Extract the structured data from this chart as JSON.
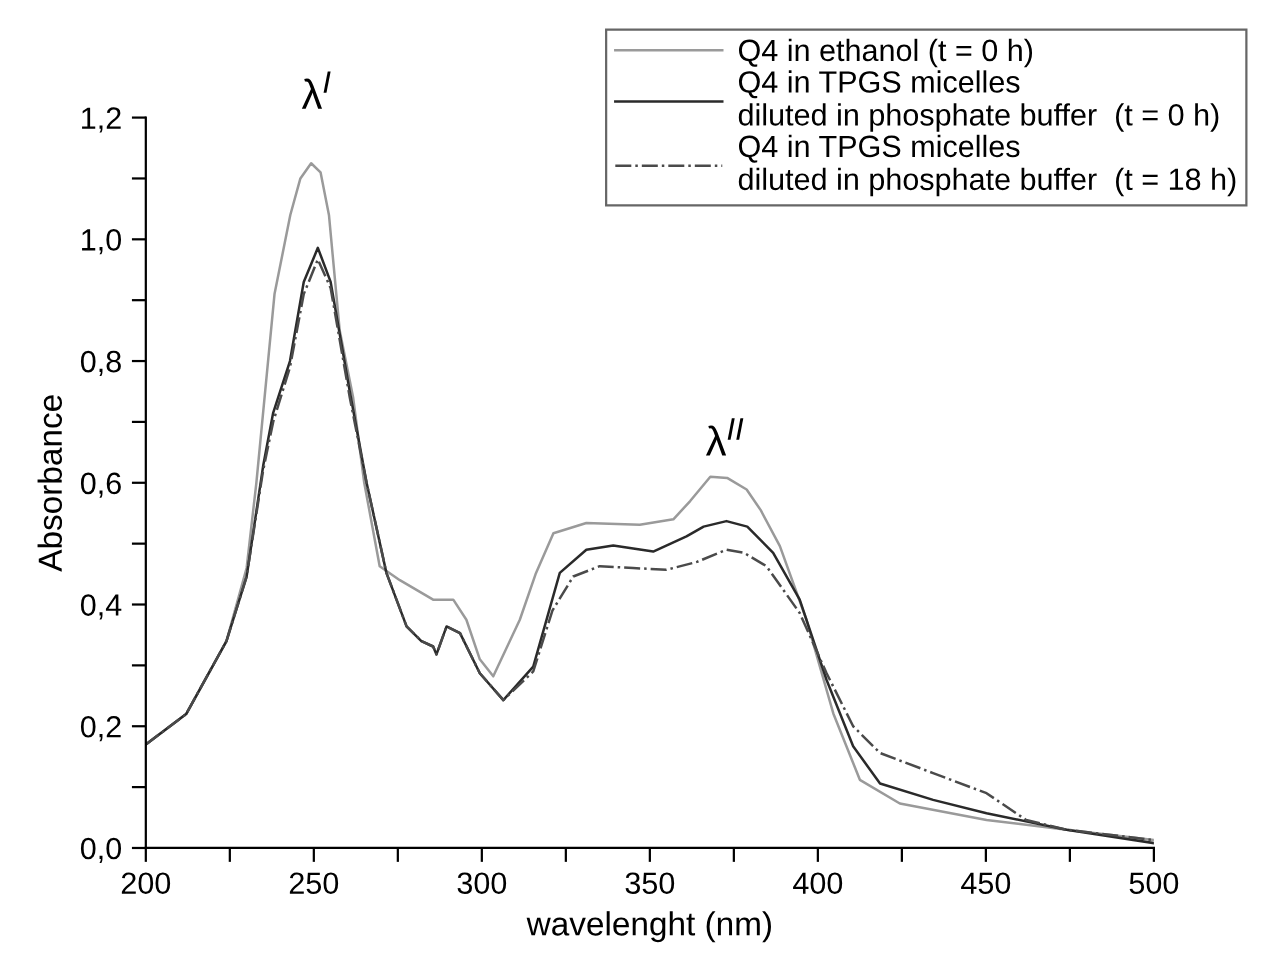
{
  "chart_data": {
    "type": "line",
    "xlabel": "wavelenght (nm)",
    "ylabel": "Absorbance",
    "xlim": [
      200,
      500
    ],
    "ylim": [
      0,
      1.2
    ],
    "xticks": [
      200,
      {
        "value": 225,
        "label": null
      },
      250,
      {
        "value": 275,
        "label": null
      },
      300,
      {
        "value": 325,
        "label": null
      },
      350,
      {
        "value": 375,
        "label": null
      },
      400,
      {
        "value": 425,
        "label": null
      },
      450,
      {
        "value": 475,
        "label": null
      },
      500
    ],
    "yticks": [
      {
        "value": 0,
        "label": "0,0"
      },
      {
        "value": 0.1,
        "label": null
      },
      {
        "value": 0.2,
        "label": "0,2"
      },
      {
        "value": 0.3,
        "label": null
      },
      {
        "value": 0.4,
        "label": "0,4"
      },
      {
        "value": 0.5,
        "label": null
      },
      {
        "value": 0.6,
        "label": "0,6"
      },
      {
        "value": 0.7,
        "label": null
      },
      {
        "value": 0.8,
        "label": "0,8"
      },
      {
        "value": 0.9,
        "label": null
      },
      {
        "value": 1.0,
        "label": "1,0"
      },
      {
        "value": 1.1,
        "label": null
      },
      {
        "value": 1.2,
        "label": "1,2"
      }
    ],
    "grid": false,
    "legend": "top right",
    "marker": "none",
    "annotations": [
      "λ$^{I}$",
      "λ$^{II}$"
    ],
    "series": [
      {
        "name": "Q4 in ethanol (t = 0 h)",
        "color": "#9a9a9a",
        "line_style": "solid",
        "x": [
          200,
          212,
          224,
          230,
          232.9,
          238.3,
          243,
          246,
          249.2,
          252,
          254.5,
          257.7,
          261.7,
          265,
          269.6,
          275.6,
          285.5,
          291.5,
          295.4,
          299.4,
          303.4,
          311.3,
          316,
          321.3,
          331.1,
          347,
          357,
          362,
          368,
          373,
          378.8,
          383,
          388.7,
          396.6,
          404.6,
          412.5,
          424.4,
          450.2,
          474,
          500
        ],
        "values": [
          0.17,
          0.22,
          0.34,
          0.46,
          0.6,
          0.91,
          1.04,
          1.1,
          1.125,
          1.11,
          1.04,
          0.85,
          0.74,
          0.6,
          0.463,
          0.44,
          0.408,
          0.408,
          0.375,
          0.31,
          0.282,
          0.375,
          0.45,
          0.517,
          0.534,
          0.531,
          0.54,
          0.57,
          0.61,
          0.608,
          0.589,
          0.555,
          0.496,
          0.375,
          0.221,
          0.112,
          0.073,
          0.046,
          0.03,
          0.013
        ]
      },
      {
        "name": "Q4 in TPGS micelles\ndiluted in phosphate buffer  (t = 0 h)",
        "color": "#2a2a2a",
        "line_style": "solid",
        "x": [
          200,
          212,
          224,
          230,
          234.9,
          237.9,
          242.9,
          247,
          251.2,
          255,
          260.7,
          265.7,
          271.6,
          277.6,
          282,
          285.5,
          286.5,
          289.5,
          293.5,
          299.4,
          306.4,
          315.3,
          323.2,
          331.1,
          339.1,
          351,
          360.9,
          366,
          372.8,
          379,
          386.7,
          394.6,
          402.6,
          410.5,
          418.5,
          434.3,
          450.2,
          474,
          500
        ],
        "values": [
          0.17,
          0.22,
          0.34,
          0.446,
          0.627,
          0.715,
          0.8,
          0.93,
          0.986,
          0.93,
          0.75,
          0.6,
          0.452,
          0.364,
          0.34,
          0.331,
          0.318,
          0.364,
          0.353,
          0.287,
          0.243,
          0.298,
          0.452,
          0.49,
          0.497,
          0.487,
          0.512,
          0.528,
          0.537,
          0.528,
          0.485,
          0.408,
          0.276,
          0.167,
          0.106,
          0.079,
          0.057,
          0.03,
          0.008
        ]
      },
      {
        "name": "Q4 in TPGS micelles\ndiluted in phosphate buffer  (t = 18 h)",
        "color": "#4a4a4a",
        "line_style": "dashdot",
        "x": [
          200,
          212,
          224,
          230,
          234.9,
          237.9,
          242.9,
          247,
          251.2,
          255,
          260.7,
          265.7,
          271.6,
          277.6,
          282,
          285.5,
          286.5,
          289.5,
          293.5,
          299.4,
          306.4,
          315.3,
          321,
          327.2,
          335.1,
          345,
          354.9,
          364,
          372.8,
          378,
          384.7,
          394.6,
          402.6,
          410.5,
          418.5,
          434.3,
          450.2,
          462,
          474,
          500
        ],
        "values": [
          0.17,
          0.22,
          0.34,
          0.446,
          0.62,
          0.7,
          0.79,
          0.91,
          0.967,
          0.92,
          0.74,
          0.6,
          0.452,
          0.364,
          0.34,
          0.331,
          0.318,
          0.364,
          0.353,
          0.287,
          0.243,
          0.29,
          0.39,
          0.446,
          0.463,
          0.46,
          0.457,
          0.47,
          0.49,
          0.485,
          0.463,
          0.386,
          0.287,
          0.2,
          0.156,
          0.123,
          0.09,
          0.046,
          0.03,
          0.013
        ]
      }
    ]
  }
}
